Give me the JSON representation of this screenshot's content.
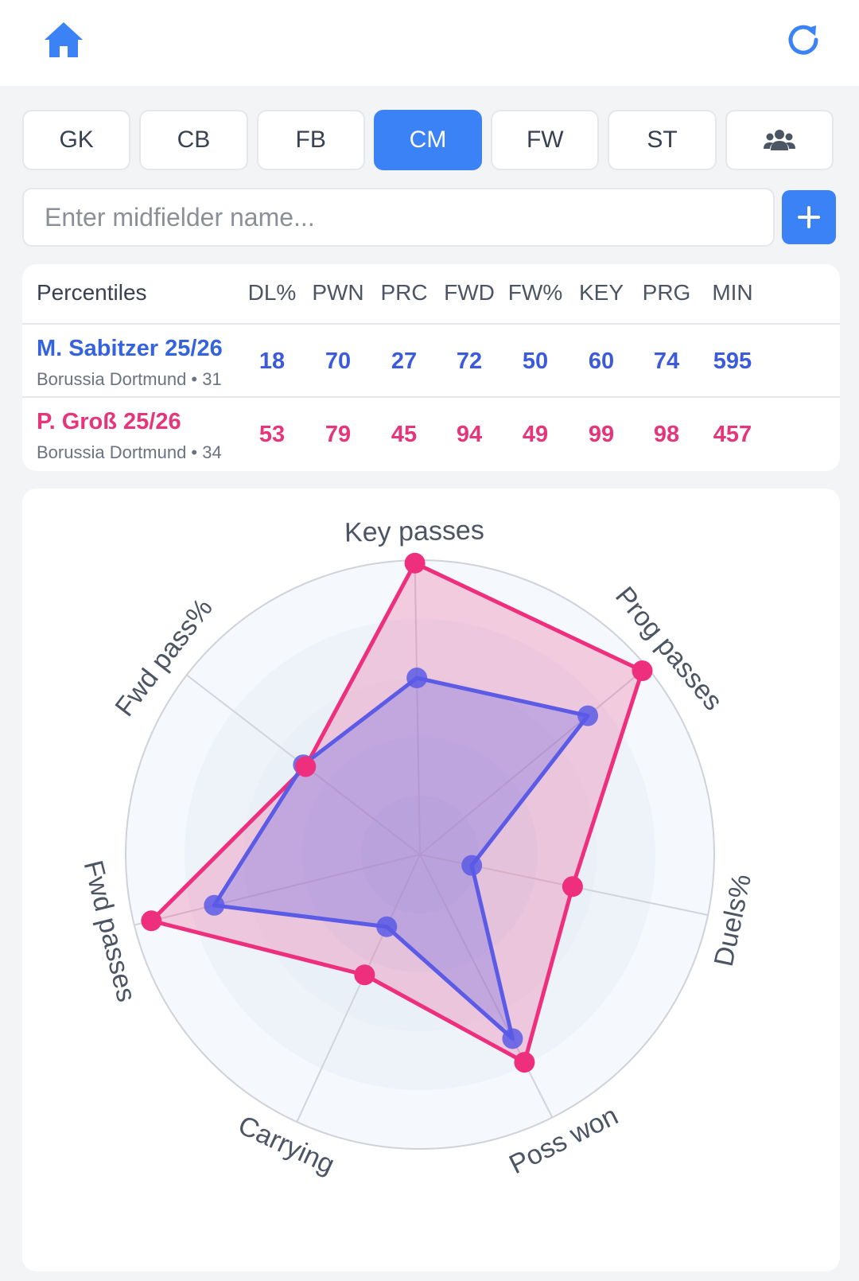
{
  "header": {
    "home_icon": "home-icon",
    "refresh_icon": "refresh-icon",
    "accent": "#3b82f6"
  },
  "tabs": [
    {
      "label": "GK",
      "active": false
    },
    {
      "label": "CB",
      "active": false
    },
    {
      "label": "FB",
      "active": false
    },
    {
      "label": "CM",
      "active": true
    },
    {
      "label": "FW",
      "active": false
    },
    {
      "label": "ST",
      "active": false
    },
    {
      "label": "",
      "icon": "users-icon",
      "active": false
    }
  ],
  "search": {
    "placeholder": "Enter midfielder name...",
    "value": "",
    "add_icon": "plus-icon"
  },
  "table": {
    "header_label": "Percentiles",
    "columns": [
      "DL%",
      "PWN",
      "PRC",
      "FWD",
      "FW%",
      "KEY",
      "PRG",
      "MIN"
    ],
    "players": [
      {
        "name": "M. Sabitzer 25/26",
        "sub": "Borussia Dortmund • 31",
        "values": [
          "18",
          "70",
          "27",
          "72",
          "50",
          "60",
          "74",
          "595"
        ],
        "color": "#3b5bdb"
      },
      {
        "name": "P. Groß 25/26",
        "sub": "Borussia Dortmund • 34",
        "values": [
          "53",
          "79",
          "45",
          "94",
          "49",
          "99",
          "98",
          "457"
        ],
        "color": "#e6357a"
      }
    ]
  },
  "chart_data": {
    "type": "radar",
    "axes": [
      "Key passes",
      "Prog passes",
      "Duels%",
      "Poss won",
      "Carrying",
      "Fwd passes",
      "Fwd pass%"
    ],
    "range": [
      0,
      100
    ],
    "series": [
      {
        "name": "M. Sabitzer 25/26",
        "color": "#5b5be6",
        "values": [
          60,
          74,
          18,
          70,
          27,
          72,
          50
        ]
      },
      {
        "name": "P. Groß 25/26",
        "color": "#ee2f7d",
        "values": [
          99,
          98,
          53,
          79,
          45,
          94,
          49
        ]
      }
    ]
  }
}
